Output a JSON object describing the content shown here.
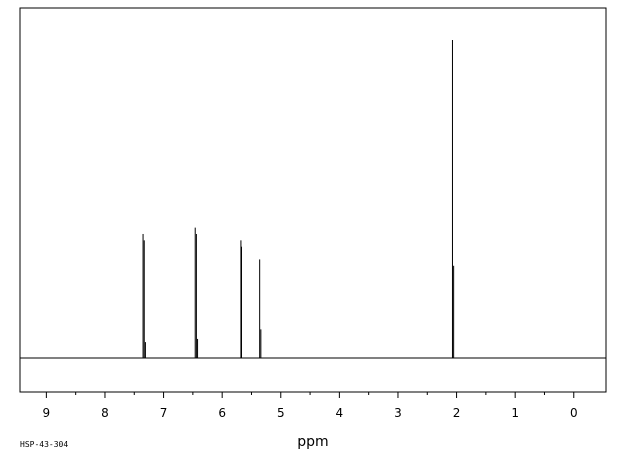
{
  "chart_data": {
    "type": "line",
    "title": "",
    "xlabel": "ppm",
    "ylabel": "",
    "x_reversed": true,
    "xlim": [
      9.45,
      -0.55
    ],
    "ylim": [
      0,
      100
    ],
    "grid": false,
    "tick_labels": [
      "9",
      "8",
      "7",
      "6",
      "5",
      "4",
      "3",
      "2",
      "1",
      "0"
    ],
    "tick_values": [
      9,
      8,
      7,
      6,
      5,
      4,
      3,
      2,
      1,
      0
    ],
    "minor_tick_step": 0.5,
    "peaks": [
      {
        "ppm": 7.35,
        "height": 39
      },
      {
        "ppm": 7.33,
        "height": 37
      },
      {
        "ppm": 7.31,
        "height": 5
      },
      {
        "ppm": 6.46,
        "height": 41
      },
      {
        "ppm": 6.44,
        "height": 39
      },
      {
        "ppm": 6.42,
        "height": 6
      },
      {
        "ppm": 5.68,
        "height": 37
      },
      {
        "ppm": 5.67,
        "height": 35
      },
      {
        "ppm": 5.36,
        "height": 31
      },
      {
        "ppm": 5.34,
        "height": 9
      },
      {
        "ppm": 2.07,
        "height": 100
      },
      {
        "ppm": 2.05,
        "height": 29
      }
    ]
  },
  "sample_code": "HSP-43-304"
}
